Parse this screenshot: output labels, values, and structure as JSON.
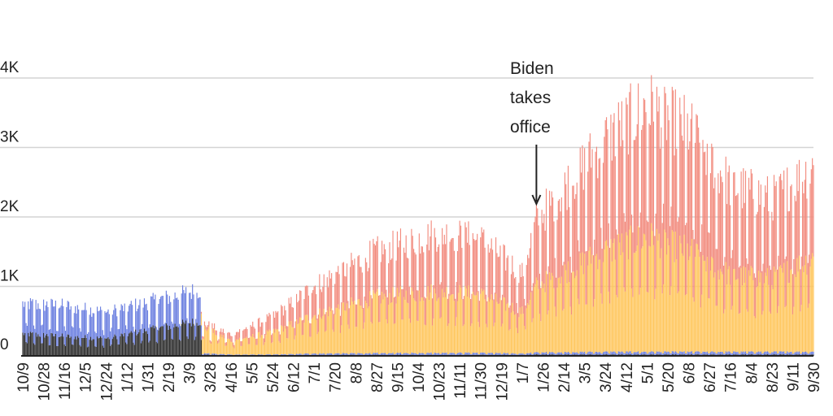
{
  "chart_data": {
    "type": "bar",
    "stacked": true,
    "title": "",
    "xlabel": "",
    "ylabel": "",
    "ylim": [
      0,
      4000
    ],
    "yticks": [
      {
        "value": 0,
        "label": "0"
      },
      {
        "value": 1000,
        "label": "1K"
      },
      {
        "value": 2000,
        "label": "2K"
      },
      {
        "value": 3000,
        "label": "3K"
      },
      {
        "value": 4000,
        "label": "4K"
      }
    ],
    "grid": true,
    "legend": "none",
    "start_date": "2019-10-09",
    "end_date": "2021-09-30",
    "xtick_labels": [
      "10/9",
      "10/28",
      "11/16",
      "12/5",
      "12/24",
      "1/12",
      "1/31",
      "2/19",
      "3/9",
      "3/28",
      "4/16",
      "5/5",
      "5/24",
      "6/12",
      "7/1",
      "7/20",
      "8/8",
      "8/27",
      "9/15",
      "10/4",
      "10/23",
      "11/11",
      "11/30",
      "12/19",
      "1/7",
      "1/26",
      "2/14",
      "3/5",
      "3/24",
      "4/12",
      "5/1",
      "5/20",
      "6/8",
      "6/27",
      "7/16",
      "8/4",
      "8/23",
      "9/11",
      "9/30"
    ],
    "series_colors": {
      "dark": "#2b2b2b",
      "blue": "#6b7fe0",
      "orange": "#ffc65c",
      "red": "#f28b7e"
    },
    "approx_daily_totals": [
      {
        "date": "2019-10-09",
        "dark": 320,
        "blue": 430,
        "orange": 0,
        "red": 0
      },
      {
        "date": "2019-11-16",
        "dark": 280,
        "blue": 440,
        "orange": 0,
        "red": 0
      },
      {
        "date": "2019-12-24",
        "dark": 250,
        "blue": 380,
        "orange": 0,
        "red": 0
      },
      {
        "date": "2020-01-31",
        "dark": 370,
        "blue": 400,
        "orange": 0,
        "red": 0
      },
      {
        "date": "2020-03-19",
        "dark": 500,
        "blue": 450,
        "orange": 0,
        "red": 0
      },
      {
        "date": "2020-03-21",
        "dark": 20,
        "blue": 20,
        "orange": 380,
        "red": 60
      },
      {
        "date": "2020-04-16",
        "dark": 10,
        "blue": 10,
        "orange": 200,
        "red": 90
      },
      {
        "date": "2020-05-24",
        "dark": 10,
        "blue": 10,
        "orange": 320,
        "red": 220
      },
      {
        "date": "2020-07-01",
        "dark": 15,
        "blue": 20,
        "orange": 550,
        "red": 420
      },
      {
        "date": "2020-08-27",
        "dark": 15,
        "blue": 25,
        "orange": 800,
        "red": 660
      },
      {
        "date": "2020-10-23",
        "dark": 15,
        "blue": 30,
        "orange": 880,
        "red": 840
      },
      {
        "date": "2020-11-30",
        "dark": 15,
        "blue": 30,
        "orange": 830,
        "red": 800
      },
      {
        "date": "2021-01-07",
        "dark": 15,
        "blue": 20,
        "orange": 600,
        "red": 560
      },
      {
        "date": "2021-01-20",
        "dark": 20,
        "blue": 30,
        "orange": 950,
        "red": 950
      },
      {
        "date": "2021-03-24",
        "dark": 20,
        "blue": 40,
        "orange": 1450,
        "red": 1600
      },
      {
        "date": "2021-05-01",
        "dark": 20,
        "blue": 40,
        "orange": 1650,
        "red": 1900
      },
      {
        "date": "2021-06-08",
        "dark": 20,
        "blue": 40,
        "orange": 1450,
        "red": 1750
      },
      {
        "date": "2021-07-16",
        "dark": 20,
        "blue": 40,
        "orange": 1100,
        "red": 1300
      },
      {
        "date": "2021-08-23",
        "dark": 20,
        "blue": 40,
        "orange": 1050,
        "red": 1150
      },
      {
        "date": "2021-09-30",
        "dark": 20,
        "blue": 40,
        "orange": 1350,
        "red": 1300
      }
    ],
    "annotations": [
      {
        "lines": [
          "Biden",
          "takes",
          "office"
        ],
        "date": "2021-01-20"
      }
    ]
  }
}
